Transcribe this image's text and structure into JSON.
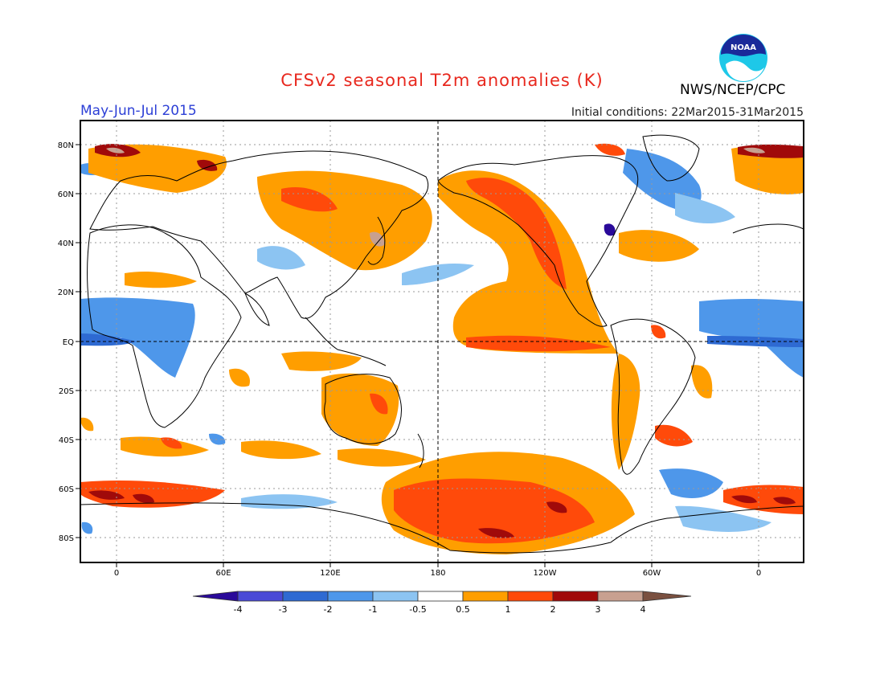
{
  "header": {
    "title": "CFSv2 seasonal T2m anomalies (K)",
    "period": "May-Jun-Jul 2015",
    "initial_conditions": "Initial conditions: 22Mar2015-31Mar2015",
    "agency": "NWS/NCEP/CPC",
    "logo_text": "NOAA"
  },
  "colors": {
    "title": "#e8281e",
    "period": "#2c3fd6",
    "neg4": "#2a0a9a",
    "neg3": "#4a4ad6",
    "neg2": "#2e6ad2",
    "neg1": "#4e97ea",
    "neg05": "#8cc4f2",
    "neutral": "#ffffff",
    "pos05": "#ff9e00",
    "pos1": "#ff4a0a",
    "pos2": "#a00a0a",
    "pos3": "#c8a090",
    "pos4": "#7a5040"
  },
  "map": {
    "lat_labels": [
      "80N",
      "60N",
      "40N",
      "20N",
      "EQ",
      "20S",
      "40S",
      "60S",
      "80S"
    ],
    "lon_labels": [
      "0",
      "60E",
      "120E",
      "180",
      "120W",
      "60W",
      "0"
    ]
  },
  "colorbar": {
    "labels": [
      "-4",
      "-3",
      "-2",
      "-1",
      "-0.5",
      "0.5",
      "1",
      "2",
      "3",
      "4"
    ]
  }
}
